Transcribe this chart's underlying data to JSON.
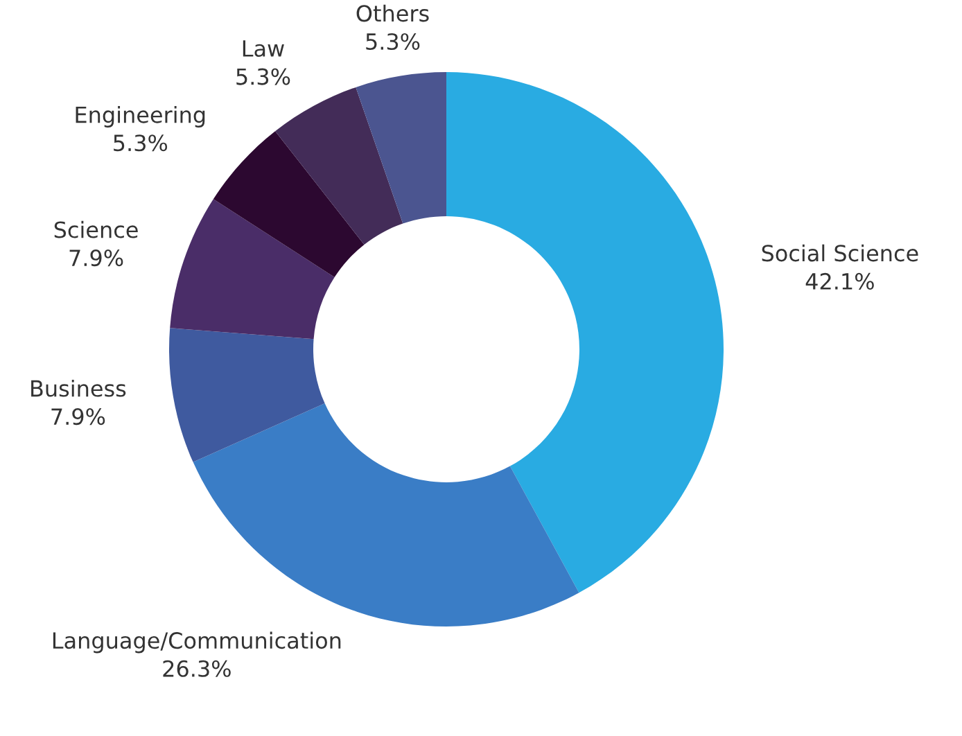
{
  "chart_data": {
    "type": "donut",
    "categories": [
      "Social Science",
      "Language/Communication",
      "Business",
      "Science",
      "Engineering",
      "Law",
      "Others"
    ],
    "values": [
      42.1,
      26.3,
      7.9,
      7.9,
      5.3,
      5.3,
      5.3
    ],
    "value_labels": [
      "42.1%",
      "26.3%",
      "7.9%",
      "7.9%",
      "5.3%",
      "5.3%",
      "5.3%"
    ],
    "colors": [
      "#29abe2",
      "#3a7dc6",
      "#3f5a9f",
      "#4a2d68",
      "#2c0830",
      "#432c58",
      "#4b5590"
    ],
    "legend": false
  }
}
